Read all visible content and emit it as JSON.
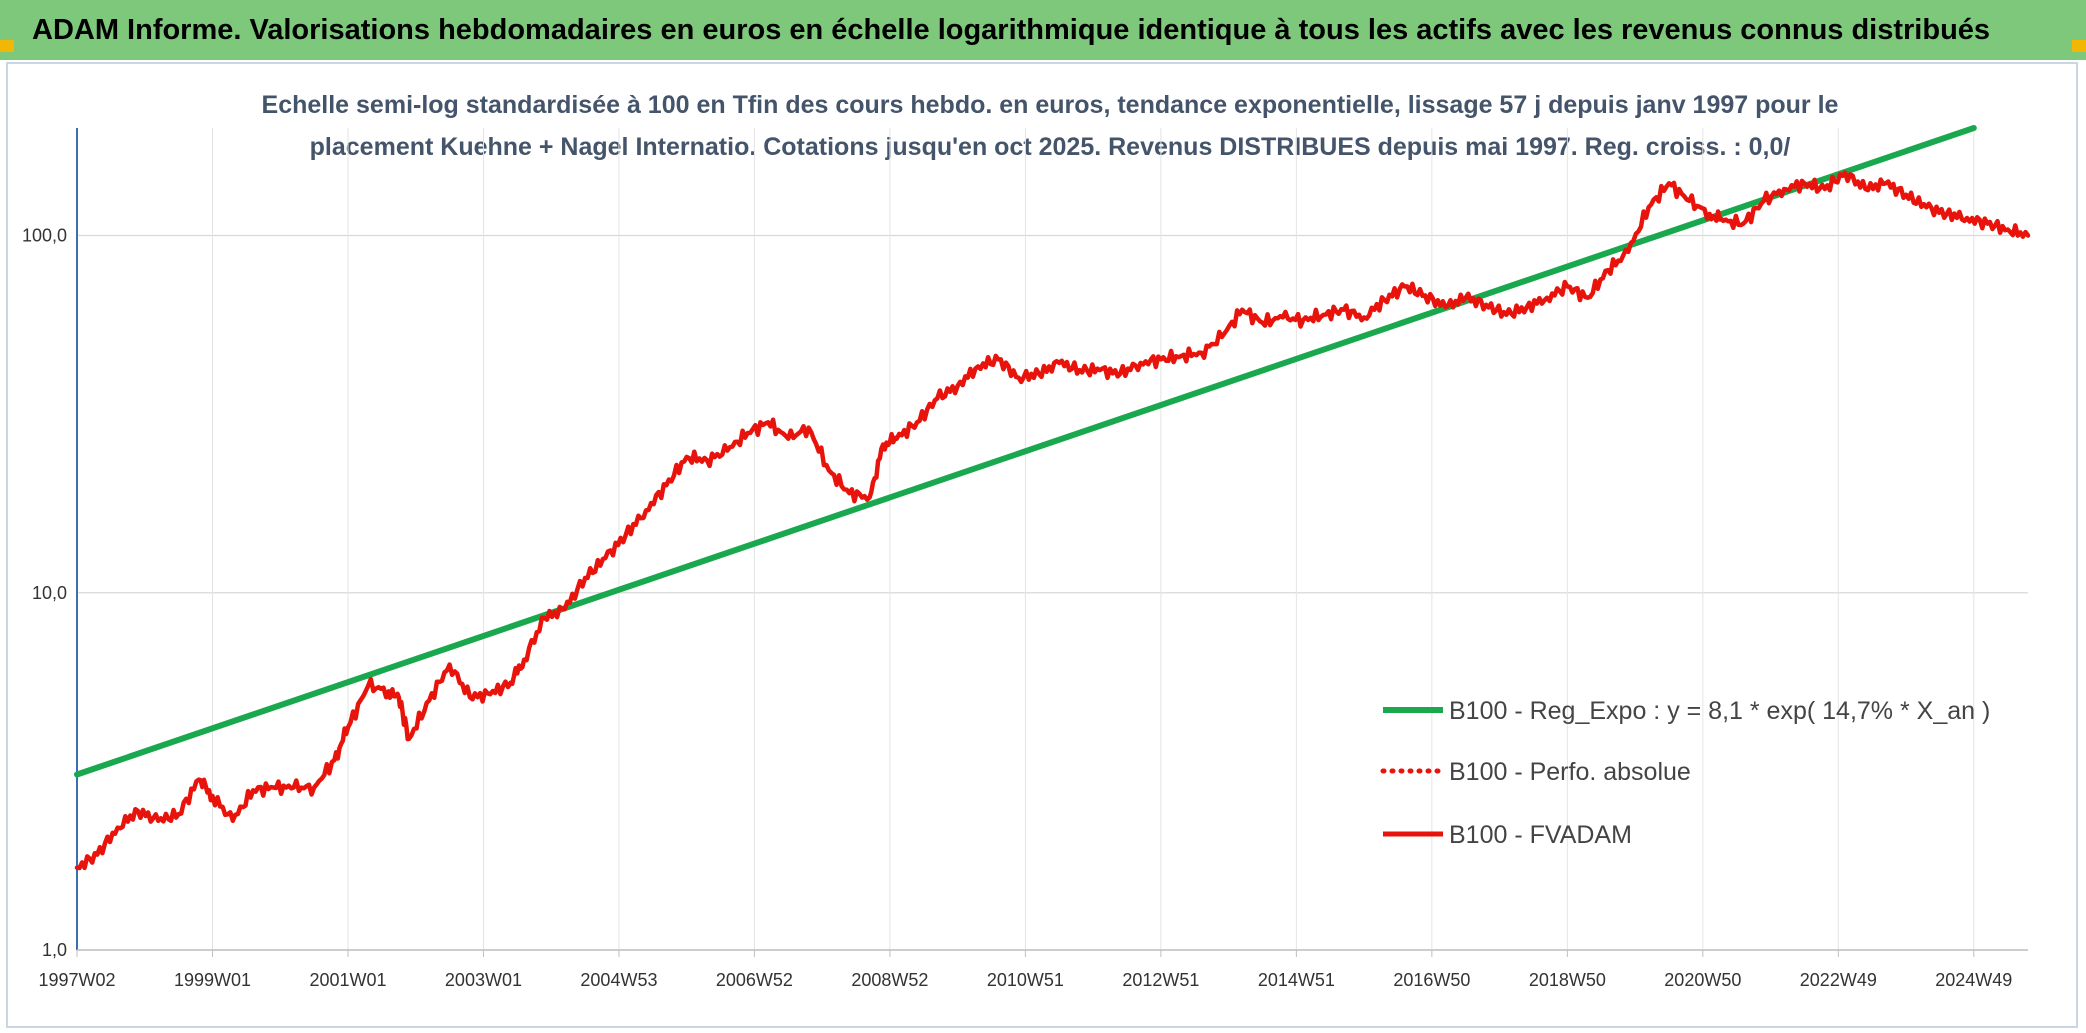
{
  "banner": {
    "title": "ADAM Informe. Valorisations hebdomadaires en euros en échelle logarithmique identique à tous les actifs avec les revenus connus distribués"
  },
  "colors": {
    "banner": "#7dc87a",
    "trend": "#1aa84f",
    "series": "#e8140c",
    "title": "#44546a",
    "corner": "#f2b705"
  },
  "chart_data": {
    "type": "line",
    "title_line1": "Echelle semi-log standardisée à 100 en Tfin des cours hebdo. en euros, tendance exponentielle, lissage 57 j depuis janv 1997 pour le",
    "title_line2": "placement Kuehne + Nagel Internatio. Cotations jusqu'en oct 2025. Revenus DISTRIBUES depuis mai 1997. Reg. croiss. : 0,0/",
    "y_scale": "log",
    "ylim": [
      1,
      200
    ],
    "xlim": [
      1997.0,
      2025.8
    ],
    "y_ticks": [
      {
        "value": 1,
        "label": "1,0"
      },
      {
        "value": 10,
        "label": "10,0"
      },
      {
        "value": 100,
        "label": "100,0"
      }
    ],
    "x_ticks": [
      {
        "x": 1997.0,
        "label": "1997W02"
      },
      {
        "x": 1999.0,
        "label": "1999W01"
      },
      {
        "x": 2001.0,
        "label": "2001W01"
      },
      {
        "x": 2003.0,
        "label": "2003W01"
      },
      {
        "x": 2005.0,
        "label": "2004W53"
      },
      {
        "x": 2007.0,
        "label": "2006W52"
      },
      {
        "x": 2009.0,
        "label": "2008W52"
      },
      {
        "x": 2011.0,
        "label": "2010W51"
      },
      {
        "x": 2013.0,
        "label": "2012W51"
      },
      {
        "x": 2015.0,
        "label": "2014W51"
      },
      {
        "x": 2017.0,
        "label": "2016W50"
      },
      {
        "x": 2019.0,
        "label": "2018W50"
      },
      {
        "x": 2021.0,
        "label": "2020W50"
      },
      {
        "x": 2023.0,
        "label": "2022W49"
      },
      {
        "x": 2025.0,
        "label": "2024W49"
      }
    ],
    "grid": true,
    "legend_position": "right",
    "series": [
      {
        "name": "B100 - Reg_Expo : y = 8,1 * exp( 14,7% * X_an )",
        "style": "solid-green",
        "x": [
          1997.0,
          2025.0
        ],
        "y": [
          3.1,
          200
        ]
      },
      {
        "name": "B100 - Perfo. absolue",
        "style": "dotted-red",
        "x": [],
        "y": []
      },
      {
        "name": "B100 - FVADAM",
        "style": "solid-red",
        "x": [
          1997.0,
          1997.3,
          1997.6,
          1997.9,
          1998.2,
          1998.5,
          1998.8,
          1999.0,
          1999.3,
          1999.6,
          1999.9,
          2000.2,
          2000.5,
          2000.8,
          2001.0,
          2001.3,
          2001.6,
          2001.75,
          2001.9,
          2002.2,
          2002.5,
          2002.8,
          2003.1,
          2003.4,
          2003.6,
          2003.9,
          2004.2,
          2004.5,
          2004.8,
          2005.1,
          2005.4,
          2005.7,
          2006.0,
          2006.3,
          2006.6,
          2006.9,
          2007.2,
          2007.5,
          2007.8,
          2008.1,
          2008.4,
          2008.7,
          2008.9,
          2009.1,
          2009.4,
          2009.7,
          2010.0,
          2010.3,
          2010.6,
          2010.9,
          2011.2,
          2011.5,
          2011.8,
          2012.1,
          2012.4,
          2012.7,
          2013.0,
          2013.3,
          2013.6,
          2013.9,
          2014.2,
          2014.5,
          2014.8,
          2015.1,
          2015.4,
          2015.7,
          2016.0,
          2016.3,
          2016.6,
          2016.9,
          2017.2,
          2017.5,
          2017.8,
          2018.1,
          2018.4,
          2018.7,
          2019.0,
          2019.3,
          2019.6,
          2019.9,
          2020.2,
          2020.5,
          2020.8,
          2021.1,
          2021.3,
          2021.6,
          2021.9,
          2022.2,
          2022.5,
          2022.8,
          2023.1,
          2023.4,
          2023.7,
          2024.0,
          2024.3,
          2024.6,
          2024.9,
          2025.2,
          2025.5,
          2025.8
        ],
        "y": [
          1.7,
          1.85,
          2.2,
          2.45,
          2.3,
          2.4,
          3.0,
          2.7,
          2.3,
          2.8,
          2.85,
          2.85,
          2.85,
          3.4,
          4.2,
          5.5,
          5.3,
          5.1,
          3.9,
          5.0,
          6.3,
          5.1,
          5.2,
          5.6,
          6.5,
          8.5,
          9.0,
          11.0,
          12.5,
          14.5,
          17.0,
          20.0,
          24.0,
          23.5,
          25.0,
          28.0,
          30.0,
          27.0,
          29.0,
          22.0,
          19.0,
          18.5,
          26.0,
          27.0,
          30.0,
          35.0,
          38.0,
          43.0,
          45.0,
          40.0,
          41.0,
          44.0,
          42.0,
          42.0,
          41.0,
          44.0,
          45.0,
          46.0,
          47.0,
          52.0,
          62.0,
          57.0,
          59.0,
          58.0,
          60.0,
          62.0,
          59.0,
          66.0,
          72.0,
          68.0,
          63.0,
          67.0,
          64.0,
          60.0,
          63.0,
          67.0,
          72.0,
          67.0,
          80.0,
          90.0,
          120.0,
          140.0,
          125.0,
          115.0,
          110.0,
          108.0,
          125.0,
          135.0,
          140.0,
          135.0,
          150.0,
          135.0,
          140.0,
          130.0,
          120.0,
          115.0,
          112.0,
          108.0,
          104.0,
          100.0
        ]
      }
    ]
  }
}
